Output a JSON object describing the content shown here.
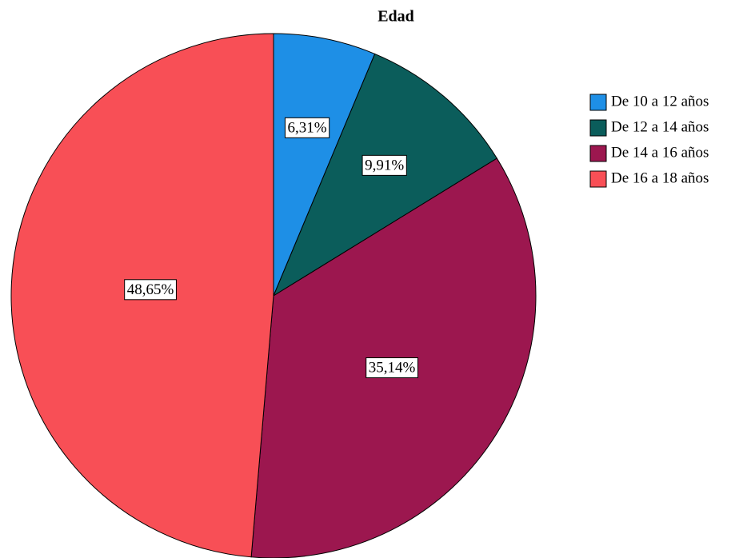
{
  "chart_data": {
    "type": "pie",
    "title": "Edad",
    "categories": [
      "De 10 a 12 años",
      "De 12 a 14 años",
      "De 14 a 16 años",
      "De 16 a 18 años"
    ],
    "values": [
      6.31,
      9.91,
      35.14,
      48.65
    ],
    "value_labels": [
      "6,31%",
      "9,91%",
      "35,14%",
      "48,65%"
    ],
    "colors": [
      "#1e8fe6",
      "#0b5d5b",
      "#9c174f",
      "#f84f56"
    ],
    "legend": "right"
  }
}
